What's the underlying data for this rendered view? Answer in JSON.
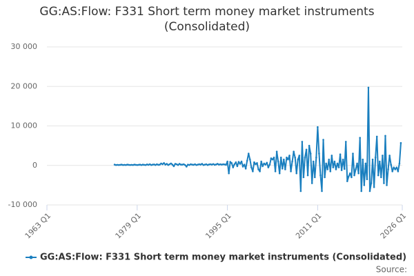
{
  "chart_data": {
    "type": "line",
    "title": "GG:AS:Flow: F331 Short term money market instruments (Consolidated)",
    "source": "Source:",
    "xlim": [
      "1963 Q1",
      "2026 Q1"
    ],
    "xticks": [
      "1963 Q1",
      "1979 Q1",
      "1995 Q1",
      "2011 Q1",
      "2026 Q1"
    ],
    "ylim": [
      -10000,
      30000
    ],
    "yticks": [
      {
        "value": -10000,
        "label": "-10 000"
      },
      0,
      {
        "value": 10000,
        "label": "10 000"
      },
      {
        "value": 20000,
        "label": "20 000"
      },
      {
        "value": 30000,
        "label": "30 000"
      }
    ],
    "grid": true,
    "legend": "bottom",
    "x": [
      "1975 Q1",
      "1975 Q2",
      "1975 Q3",
      "1975 Q4",
      "1976 Q1",
      "1976 Q2",
      "1976 Q3",
      "1976 Q4",
      "1977 Q1",
      "1977 Q2",
      "1977 Q3",
      "1977 Q4",
      "1978 Q1",
      "1978 Q2",
      "1978 Q3",
      "1978 Q4",
      "1979 Q1",
      "1979 Q2",
      "1979 Q3",
      "1979 Q4",
      "1980 Q1",
      "1980 Q2",
      "1980 Q3",
      "1980 Q4",
      "1981 Q1",
      "1981 Q2",
      "1981 Q3",
      "1981 Q4",
      "1982 Q1",
      "1982 Q2",
      "1982 Q3",
      "1982 Q4",
      "1983 Q1",
      "1983 Q2",
      "1983 Q3",
      "1983 Q4",
      "1984 Q1",
      "1984 Q2",
      "1984 Q3",
      "1984 Q4",
      "1985 Q1",
      "1985 Q2",
      "1985 Q3",
      "1985 Q4",
      "1986 Q1",
      "1986 Q2",
      "1986 Q3",
      "1986 Q4",
      "1987 Q1",
      "1987 Q2",
      "1987 Q3",
      "1987 Q4",
      "1988 Q1",
      "1988 Q2",
      "1988 Q3",
      "1988 Q4",
      "1989 Q1",
      "1989 Q2",
      "1989 Q3",
      "1989 Q4",
      "1990 Q1",
      "1990 Q2",
      "1990 Q3",
      "1990 Q4",
      "1991 Q1",
      "1991 Q2",
      "1991 Q3",
      "1991 Q4",
      "1992 Q1",
      "1992 Q2",
      "1992 Q3",
      "1992 Q4",
      "1993 Q1",
      "1993 Q2",
      "1993 Q3",
      "1993 Q4",
      "1994 Q1",
      "1994 Q2",
      "1994 Q3",
      "1994 Q4",
      "1995 Q1",
      "1995 Q2",
      "1995 Q3",
      "1995 Q4",
      "1996 Q1",
      "1996 Q2",
      "1996 Q3",
      "1996 Q4",
      "1997 Q1",
      "1997 Q2",
      "1997 Q3",
      "1997 Q4",
      "1998 Q1",
      "1998 Q2",
      "1998 Q3",
      "1998 Q4",
      "1999 Q1",
      "1999 Q2",
      "1999 Q3",
      "1999 Q4",
      "2000 Q1",
      "2000 Q2",
      "2000 Q3",
      "2000 Q4",
      "2001 Q1",
      "2001 Q2",
      "2001 Q3",
      "2001 Q4",
      "2002 Q1",
      "2002 Q2",
      "2002 Q3",
      "2002 Q4",
      "2003 Q1",
      "2003 Q2",
      "2003 Q3",
      "2003 Q4",
      "2004 Q1",
      "2004 Q2",
      "2004 Q3",
      "2004 Q4",
      "2005 Q1",
      "2005 Q2",
      "2005 Q3",
      "2005 Q4",
      "2006 Q1",
      "2006 Q2",
      "2006 Q3",
      "2006 Q4",
      "2007 Q1",
      "2007 Q2",
      "2007 Q3",
      "2007 Q4",
      "2008 Q1",
      "2008 Q2",
      "2008 Q3",
      "2008 Q4",
      "2009 Q1",
      "2009 Q2",
      "2009 Q3",
      "2009 Q4",
      "2010 Q1",
      "2010 Q2",
      "2010 Q3",
      "2010 Q4",
      "2011 Q1",
      "2011 Q2",
      "2011 Q3",
      "2011 Q4",
      "2012 Q1",
      "2012 Q2",
      "2012 Q3",
      "2012 Q4",
      "2013 Q1",
      "2013 Q2",
      "2013 Q3",
      "2013 Q4",
      "2014 Q1",
      "2014 Q2",
      "2014 Q3",
      "2014 Q4",
      "2015 Q1",
      "2015 Q2",
      "2015 Q3",
      "2015 Q4",
      "2016 Q1",
      "2016 Q2",
      "2016 Q3",
      "2016 Q4",
      "2017 Q1",
      "2017 Q2",
      "2017 Q3",
      "2017 Q4",
      "2018 Q1",
      "2018 Q2",
      "2018 Q3",
      "2018 Q4",
      "2019 Q1",
      "2019 Q2",
      "2019 Q3",
      "2019 Q4",
      "2020 Q1",
      "2020 Q2",
      "2020 Q3",
      "2020 Q4",
      "2021 Q1",
      "2021 Q2",
      "2021 Q3",
      "2021 Q4",
      "2022 Q1",
      "2022 Q2",
      "2022 Q3",
      "2022 Q4",
      "2023 Q1",
      "2023 Q2",
      "2023 Q3",
      "2023 Q4",
      "2024 Q1",
      "2024 Q2",
      "2024 Q3",
      "2024 Q4",
      "2025 Q1",
      "2025 Q2",
      "2025 Q3",
      "2025 Q4"
    ],
    "series": [
      {
        "name": "GG:AS:Flow: F331 Short term money market instruments (Consolidated)",
        "color": "#1a7fbf",
        "values": [
          200,
          100,
          150,
          100,
          150,
          200,
          100,
          150,
          100,
          200,
          150,
          100,
          150,
          100,
          200,
          150,
          100,
          150,
          200,
          100,
          200,
          150,
          100,
          250,
          150,
          300,
          100,
          200,
          250,
          100,
          300,
          150,
          200,
          500,
          300,
          600,
          200,
          400,
          100,
          300,
          500,
          200,
          -200,
          400,
          300,
          100,
          400,
          200,
          200,
          300,
          100,
          -300,
          200,
          100,
          300,
          200,
          150,
          300,
          100,
          200,
          300,
          200,
          400,
          100,
          200,
          300,
          100,
          250,
          300,
          200,
          350,
          150,
          250,
          400,
          200,
          300,
          200,
          300,
          250,
          150,
          1000,
          -2000,
          900,
          600,
          -500,
          300,
          800,
          -200,
          900,
          400,
          1000,
          -300,
          200,
          -800,
          1200,
          3000,
          1500,
          -500,
          -1500,
          800,
          300,
          600,
          -1000,
          -1500,
          1000,
          -200,
          500,
          200,
          700,
          -500,
          200,
          1800,
          1500,
          2000,
          -1500,
          3500,
          1000,
          -2000,
          2000,
          -800,
          1500,
          -1000,
          2000,
          1500,
          2500,
          -1500,
          1000,
          3500,
          2000,
          -2000,
          1500,
          2500,
          -6500,
          6000,
          -3000,
          2000,
          4000,
          -2500,
          5000,
          3000,
          -4500,
          1000,
          -3000,
          2000,
          9700,
          3000,
          -2500,
          -6500,
          6500,
          -3000,
          500,
          -1000,
          1500,
          -1500,
          2500,
          -500,
          1000,
          -1000,
          500,
          -500,
          2800,
          -1200,
          1500,
          -900,
          6000,
          -4000,
          -2800,
          -2000,
          -3000,
          3000,
          -2500,
          -1000,
          500,
          -2000,
          7000,
          -6500,
          1500,
          -5000,
          500,
          -3500,
          19700,
          -6500,
          -4500,
          1500,
          -5500,
          2000,
          7300,
          -2500,
          1000,
          -3000,
          2500,
          -4500,
          7500,
          -5000,
          -1000,
          2500,
          200,
          -1500,
          -500,
          -1000,
          -500,
          -1500,
          500,
          5700
        ]
      }
    ]
  }
}
